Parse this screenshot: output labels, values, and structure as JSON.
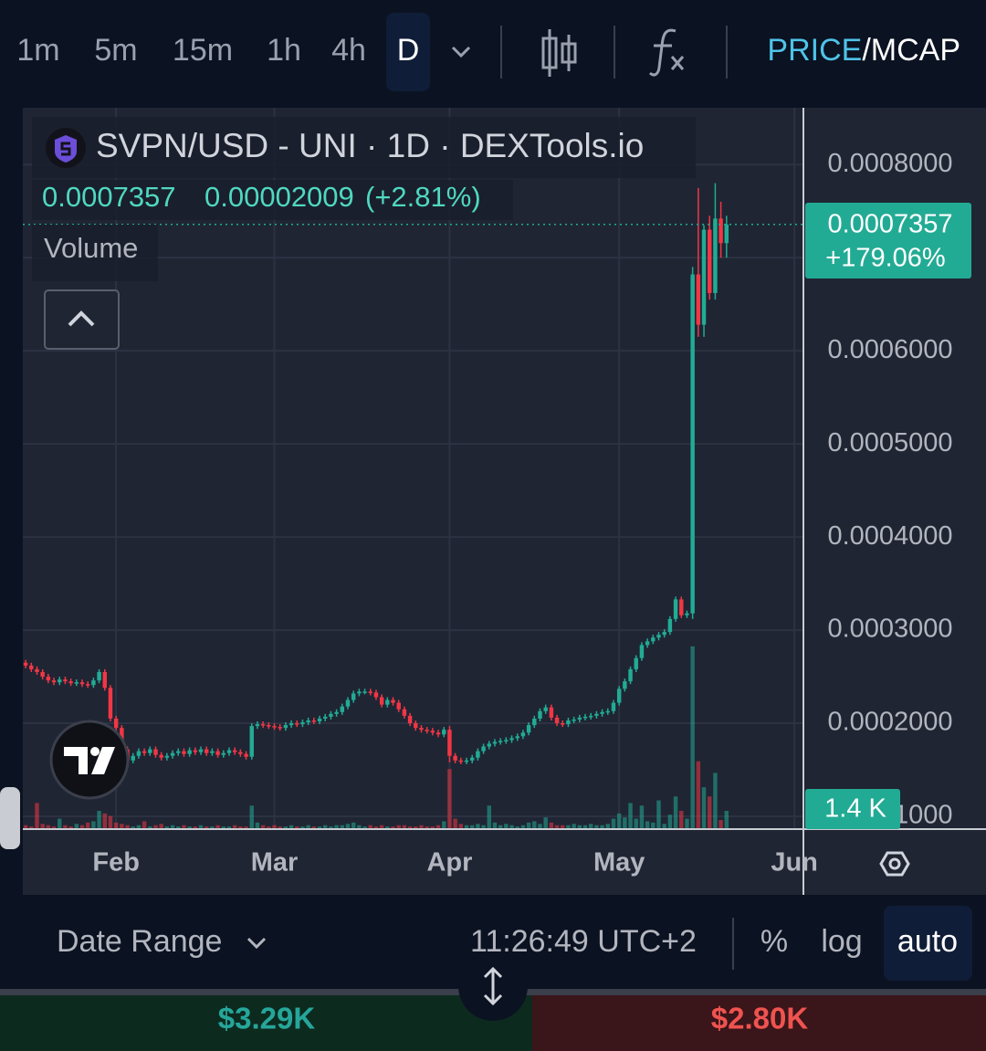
{
  "toolbar": {
    "intervals": [
      "1m",
      "5m",
      "15m",
      "1h",
      "4h",
      "D"
    ],
    "price": "PRICE",
    "mcap": "/MCAP"
  },
  "chart_data": {
    "type": "candlestick",
    "title": "SVPN/USD - UNI · 1D · DEXTools.io",
    "last_price": "0.0007357",
    "change": "0.00002009",
    "change_percent": "(+2.81%)",
    "volume_title": "Volume",
    "badge_price": "0.0007357",
    "badge_change": "+179.06%",
    "volume_badge": "1.4 K",
    "colors": {
      "up": "#22ab94",
      "down": "#f23645"
    },
    "grid": true,
    "ylim": [
      8.63e-05,
      0.000861
    ],
    "yticks": [
      {
        "value": 0.0001,
        "label": "0.0001000"
      },
      {
        "value": 0.0002,
        "label": "0.0002000"
      },
      {
        "value": 0.0003,
        "label": "0.0003000"
      },
      {
        "value": 0.0004,
        "label": "0.0004000"
      },
      {
        "value": 0.0005,
        "label": "0.0005000"
      },
      {
        "value": 0.0006,
        "label": "0.0006000"
      },
      {
        "value": 0.0007,
        "label": "0.0007000"
      },
      {
        "value": 0.0008,
        "label": "0.0008000"
      }
    ],
    "xlim": [
      -0.5,
      137.6
    ],
    "xticks": [
      {
        "value": 16,
        "label": "Feb"
      },
      {
        "value": 44,
        "label": "Mar"
      },
      {
        "value": 75,
        "label": "Apr"
      },
      {
        "value": 105,
        "label": "May"
      },
      {
        "value": 136,
        "label": "Jun"
      }
    ],
    "open": [
      0.000265,
      0.000262,
      0.000258,
      0.000255,
      0.00025,
      0.000246,
      0.000244,
      0.000247,
      0.000245,
      0.000243,
      0.000244,
      0.000242,
      0.000241,
      0.000246,
      0.000255,
      0.000238,
      0.000205,
      0.000195,
      0.000172,
      0.00016,
      0.000165,
      0.00017,
      0.000168,
      0.000172,
      0.000166,
      0.000163,
      0.000165,
      0.000168,
      0.00017,
      0.000167,
      0.000171,
      0.000169,
      0.000172,
      0.000168,
      0.00017,
      0.000166,
      0.000168,
      0.000171,
      0.000169,
      0.000167,
      0.000164,
      0.000197,
      0.000199,
      0.000198,
      0.000197,
      0.000196,
      0.000195,
      0.000198,
      0.0002,
      0.000199,
      0.000201,
      0.000203,
      0.000202,
      0.000205,
      0.000207,
      0.00021,
      0.000212,
      0.000218,
      0.000225,
      0.000232,
      0.000234,
      0.000234,
      0.000233,
      0.000228,
      0.00022,
      0.000225,
      0.000222,
      0.000215,
      0.000208,
      0.0002,
      0.000195,
      0.000193,
      0.000192,
      0.00019,
      0.000188,
      0.000193,
      0.000165,
      0.00016,
      0.000159,
      0.00016,
      0.000163,
      0.00017,
      0.000175,
      0.000178,
      0.00018,
      0.000181,
      0.000182,
      0.000184,
      0.000186,
      0.00019,
      0.000198,
      0.000205,
      0.000213,
      0.000217,
      0.000206,
      0.0002,
      0.000199,
      0.000203,
      0.000204,
      0.000206,
      0.000207,
      0.000208,
      0.00021,
      0.000212,
      0.000213,
      0.000222,
      0.000237,
      0.000245,
      0.000258,
      0.00027,
      0.000284,
      0.000288,
      0.000292,
      0.000295,
      0.000298,
      0.000312,
      0.000333,
      0.000316,
      0.000318,
      0.000682,
      0.000628,
      0.00073,
      0.000662,
      0.000742,
      0.0007156
    ],
    "high": [
      0.000268,
      0.000265,
      0.000261,
      0.000258,
      0.000253,
      0.000249,
      0.00025,
      0.00025,
      0.000248,
      0.000247,
      0.000247,
      0.000245,
      0.000249,
      0.000258,
      0.000258,
      0.000241,
      0.000208,
      0.000198,
      0.000175,
      0.000168,
      0.000173,
      0.000173,
      0.000175,
      0.000175,
      0.000169,
      0.000168,
      0.000171,
      0.000173,
      0.000173,
      0.000174,
      0.000174,
      0.000175,
      0.000175,
      0.000173,
      0.000173,
      0.000171,
      0.000174,
      0.000174,
      0.000172,
      0.00017,
      0.0002,
      0.000202,
      0.000202,
      0.000201,
      0.0002,
      0.000199,
      0.000201,
      0.000203,
      0.000203,
      0.000204,
      0.000206,
      0.000206,
      0.000208,
      0.00021,
      0.000213,
      0.000215,
      0.000221,
      0.000228,
      0.000235,
      0.000237,
      0.000237,
      0.000237,
      0.000236,
      0.000231,
      0.000228,
      0.000228,
      0.000225,
      0.000218,
      0.000211,
      0.000203,
      0.000198,
      0.000196,
      0.000195,
      0.000193,
      0.000196,
      0.000197,
      0.000168,
      0.000163,
      0.000163,
      0.000166,
      0.000173,
      0.000178,
      0.000181,
      0.000183,
      0.000184,
      0.000185,
      0.000187,
      0.000189,
      0.000193,
      0.000201,
      0.000208,
      0.000216,
      0.00022,
      0.00022,
      0.000209,
      0.000203,
      0.000206,
      0.000207,
      0.000209,
      0.00021,
      0.000211,
      0.000213,
      0.000215,
      0.000216,
      0.000225,
      0.00024,
      0.000248,
      0.000261,
      0.000273,
      0.000287,
      0.000291,
      0.000295,
      0.000298,
      0.000301,
      0.000315,
      0.000336,
      0.000336,
      0.000321,
      0.00069,
      0.000775,
      0.000735,
      0.000745,
      0.00078,
      0.00076,
      0.000745
    ],
    "low": [
      0.000259,
      0.000255,
      0.000252,
      0.000247,
      0.000243,
      0.000241,
      0.000241,
      0.000242,
      0.00024,
      0.00024,
      0.000239,
      0.000238,
      0.000238,
      0.000243,
      0.000235,
      0.000202,
      0.000192,
      0.000169,
      0.000157,
      0.000157,
      0.000162,
      0.000165,
      0.000165,
      0.000163,
      0.00016,
      0.00016,
      0.000162,
      0.000165,
      0.000164,
      0.000164,
      0.000166,
      0.000166,
      0.000165,
      0.000165,
      0.000163,
      0.000163,
      0.000165,
      0.000166,
      0.000164,
      0.000161,
      0.000161,
      0.000194,
      0.000195,
      0.000194,
      0.000193,
      0.000192,
      0.000192,
      0.000195,
      0.000196,
      0.000196,
      0.000198,
      0.000199,
      0.000199,
      0.000202,
      0.000204,
      0.000207,
      0.000209,
      0.000215,
      0.000222,
      0.000229,
      0.000231,
      0.00023,
      0.000225,
      0.000217,
      0.000217,
      0.000219,
      0.000212,
      0.000205,
      0.000197,
      0.000192,
      0.00019,
      0.000189,
      0.000187,
      0.000185,
      0.000185,
      0.000158,
      0.000157,
      0.000156,
      0.000156,
      0.000157,
      0.00016,
      0.000167,
      0.000172,
      0.000175,
      0.000177,
      0.000178,
      0.000179,
      0.000181,
      0.000183,
      0.000187,
      0.000195,
      0.000202,
      0.00021,
      0.000203,
      0.000197,
      0.000196,
      0.000196,
      0.0002,
      0.000201,
      0.000203,
      0.000204,
      0.000205,
      0.000207,
      0.000209,
      0.00021,
      0.000219,
      0.000234,
      0.000242,
      0.000255,
      0.000267,
      0.000281,
      0.000285,
      0.000289,
      0.000292,
      0.000295,
      0.000309,
      0.000313,
      0.000313,
      0.000312,
      0.000615,
      0.000615,
      0.000655,
      0.000655,
      0.0007,
      0.0007
    ],
    "close": [
      0.000262,
      0.000258,
      0.000255,
      0.00025,
      0.000246,
      0.000244,
      0.000247,
      0.000245,
      0.000243,
      0.000244,
      0.000242,
      0.000241,
      0.000246,
      0.000255,
      0.000238,
      0.000205,
      0.000195,
      0.000172,
      0.00016,
      0.000165,
      0.00017,
      0.000168,
      0.000172,
      0.000166,
      0.000163,
      0.000165,
      0.000168,
      0.00017,
      0.000167,
      0.000171,
      0.000169,
      0.000172,
      0.000168,
      0.00017,
      0.000166,
      0.000168,
      0.000171,
      0.000169,
      0.000167,
      0.000164,
      0.000197,
      0.000199,
      0.000198,
      0.000197,
      0.000196,
      0.000195,
      0.000198,
      0.0002,
      0.000199,
      0.000201,
      0.000203,
      0.000202,
      0.000205,
      0.000207,
      0.00021,
      0.000212,
      0.000218,
      0.000225,
      0.000232,
      0.000234,
      0.000234,
      0.000233,
      0.000228,
      0.00022,
      0.000225,
      0.000222,
      0.000215,
      0.000208,
      0.0002,
      0.000195,
      0.000193,
      0.000192,
      0.00019,
      0.000188,
      0.000193,
      0.000165,
      0.00016,
      0.000159,
      0.00016,
      0.000163,
      0.00017,
      0.000175,
      0.000178,
      0.00018,
      0.000181,
      0.000182,
      0.000184,
      0.000186,
      0.00019,
      0.000198,
      0.000205,
      0.000213,
      0.000217,
      0.000206,
      0.0002,
      0.000199,
      0.000203,
      0.000204,
      0.000206,
      0.000207,
      0.000208,
      0.00021,
      0.000212,
      0.000213,
      0.000222,
      0.000237,
      0.000245,
      0.000258,
      0.00027,
      0.000284,
      0.000288,
      0.000292,
      0.000295,
      0.000298,
      0.000312,
      0.000333,
      0.000316,
      0.000318,
      0.000682,
      0.000628,
      0.00073,
      0.000662,
      0.000742,
      0.0007156,
      0.0007357
    ],
    "volume": [
      0.3,
      0.2,
      2.0,
      0.4,
      0.3,
      0.2,
      0.8,
      0.3,
      0.2,
      0.4,
      0.3,
      0.5,
      0.6,
      1.4,
      1.2,
      1.0,
      0.5,
      0.4,
      0.3,
      0.2,
      0.3,
      0.6,
      0.2,
      0.3,
      0.4,
      0.2,
      0.3,
      0.2,
      0.3,
      0.2,
      0.2,
      0.3,
      0.2,
      0.2,
      0.3,
      0.2,
      0.2,
      0.3,
      0.2,
      0.2,
      1.8,
      0.5,
      0.3,
      0.2,
      0.3,
      0.2,
      0.2,
      0.3,
      0.2,
      0.2,
      0.3,
      0.2,
      0.2,
      0.3,
      0.2,
      0.3,
      0.3,
      0.4,
      0.5,
      0.3,
      0.2,
      0.3,
      0.2,
      0.3,
      0.2,
      0.2,
      0.3,
      0.3,
      0.2,
      0.2,
      0.3,
      0.2,
      0.2,
      0.3,
      0.6,
      4.6,
      0.8,
      0.4,
      0.3,
      0.3,
      0.4,
      0.3,
      1.8,
      0.5,
      0.3,
      0.4,
      0.3,
      0.2,
      0.3,
      0.5,
      0.6,
      0.4,
      0.9,
      0.5,
      0.3,
      0.3,
      0.3,
      0.4,
      0.3,
      0.3,
      0.4,
      0.3,
      0.3,
      0.4,
      0.8,
      1.2,
      0.9,
      2.0,
      0.8,
      1.8,
      0.6,
      0.5,
      2.2,
      0.4,
      1.1,
      2.5,
      1.4,
      0.8,
      14.0,
      5.2,
      3.2,
      2.5,
      4.3,
      0.7,
      1.4
    ]
  },
  "status": {
    "date_range": "Date Range",
    "time": "11:26:49 UTC+2",
    "percent": "%",
    "log": "log",
    "auto": "auto"
  },
  "footer": {
    "buys": "$3.29K",
    "sells": "$2.80K"
  }
}
